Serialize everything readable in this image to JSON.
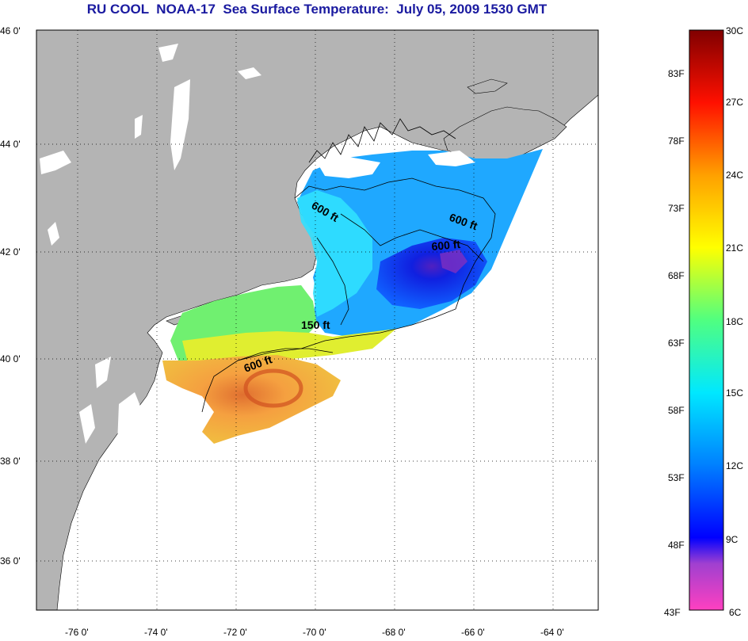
{
  "title": "RU COOL  NOAA-17  Sea Surface Temperature:  July 05, 2009 1530 GMT",
  "latitude_labels": [
    "46 0'",
    "44 0'",
    "42 0'",
    "40 0'",
    "38 0'",
    "36 0'"
  ],
  "longitude_labels": [
    "-76 0'",
    "-74 0'",
    "-72 0'",
    "-70 0'",
    "-68 0'",
    "-66 0'",
    "-64 0'"
  ],
  "depth_contours": [
    "600 ft",
    "600 ft",
    "600 ft",
    "150 ft",
    "600 ft"
  ],
  "colorbar": {
    "fahrenheit_labels": [
      "83F",
      "78F",
      "73F",
      "68F",
      "63F",
      "58F",
      "53F",
      "48F",
      "43F"
    ],
    "celsius_labels": [
      "30C",
      "27C",
      "24C",
      "21C",
      "18C",
      "15C",
      "12C",
      "9C",
      "6C"
    ],
    "min_c": 6,
    "max_c": 30,
    "colors": [
      "#ff40c0",
      "#8040d0",
      "#0000ff",
      "#0080ff",
      "#00e0ff",
      "#40ff90",
      "#ffff00",
      "#ffa000",
      "#ff0000",
      "#800000"
    ]
  },
  "colors": {
    "land": "#b4b4b4",
    "water_nodata": "#ffffff",
    "grid": "#000000"
  }
}
